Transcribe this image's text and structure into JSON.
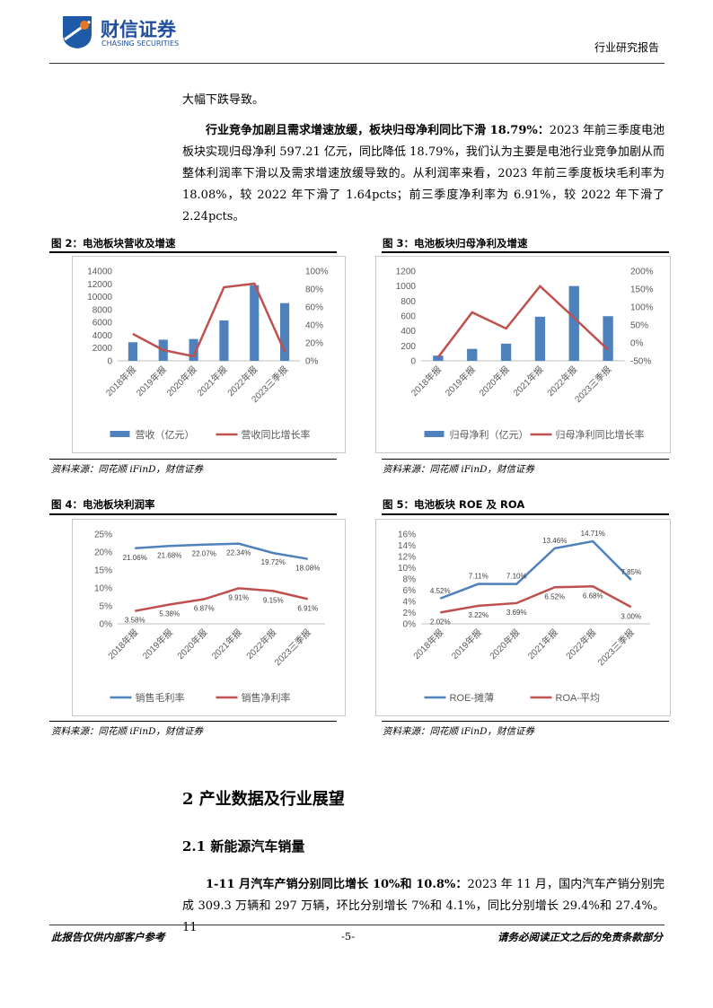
{
  "header": {
    "company": "财信证券",
    "company_en": "CHASING SECURITIES",
    "report_type": "行业研究报告"
  },
  "body": {
    "paragraphs": [
      {
        "text": "大幅下跌导致。"
      },
      {
        "lead": "行业竞争加剧且需求增速放缓，板块归母净利同比下滑 18.79%：",
        "text": "2023 年前三季度电池板块实现归母净利 597.21 亿元，同比降低 18.79%，我们认为主要是电池行业竞争加剧从而整体利润率下滑以及需求增速放缓导致的。从利润率来看，2023 年前三季度板块毛利率为 18.08%，较 2022 年下滑了 1.64pcts；前三季度净利率为 6.91%，较 2022 年下滑了 2.24pcts。"
      }
    ]
  },
  "chart_data": [
    {
      "type": "bar",
      "title": "图 2：电池板块营收及增速",
      "source": "资料来源：同花顺 iFinD，财信证券",
      "categories": [
        "2018年报",
        "2019年报",
        "2020年报",
        "2021年报",
        "2022年报",
        "2023三季报"
      ],
      "series": [
        {
          "name": "营收（亿元）",
          "color": "#4f81bd",
          "values": [
            2900,
            3300,
            3400,
            6300,
            11800,
            9000
          ]
        },
        {
          "name": "营收同比增长率",
          "color": "#c0504d",
          "axis": "y2",
          "values": [
            30,
            12,
            5,
            82,
            86,
            10
          ]
        }
      ],
      "ylim": [
        0,
        14000
      ],
      "yticks": [
        0,
        2000,
        4000,
        6000,
        8000,
        10000,
        12000,
        14000
      ],
      "y2lim": [
        0,
        100
      ],
      "y2ticks": [
        {
          "value": 0,
          "label": "0%"
        },
        {
          "value": 20,
          "label": "20%"
        },
        {
          "value": 40,
          "label": "40%"
        },
        {
          "value": 60,
          "label": "60%"
        },
        {
          "value": 80,
          "label": "80%"
        },
        {
          "value": 100,
          "label": "100%"
        }
      ]
    },
    {
      "type": "bar",
      "title": "图 3：电池板块归母净利及增速",
      "source": "资料来源：同花顺 iFinD，财信证券",
      "categories": [
        "2018年报",
        "2019年报",
        "2020年报",
        "2021年报",
        "2022年报",
        "2023三季报"
      ],
      "series": [
        {
          "name": "归母净利（亿元）",
          "color": "#4f81bd",
          "values": [
            70,
            160,
            230,
            590,
            1000,
            597
          ]
        },
        {
          "name": "归母净利同比增长率",
          "color": "#c0504d",
          "axis": "y2",
          "values": [
            -40,
            85,
            40,
            158,
            70,
            -19
          ]
        }
      ],
      "ylim": [
        0,
        1200
      ],
      "yticks": [
        0,
        200,
        400,
        600,
        800,
        1000,
        1200
      ],
      "y2lim": [
        -50,
        200
      ],
      "y2ticks": [
        {
          "value": -50,
          "label": "-50%"
        },
        {
          "value": 0,
          "label": "0%"
        },
        {
          "value": 50,
          "label": "50%"
        },
        {
          "value": 100,
          "label": "100%"
        },
        {
          "value": 150,
          "label": "150%"
        },
        {
          "value": 200,
          "label": "200%"
        }
      ]
    },
    {
      "type": "line",
      "title": "图 4：电池板块利润率",
      "source": "资料来源：同花顺 iFinD，财信证券",
      "categories": [
        "2018年报",
        "2019年报",
        "2020年报",
        "2021年报",
        "2022年报",
        "2023三季报"
      ],
      "series": [
        {
          "name": "销售毛利率",
          "color": "#4f81bd",
          "label_position": "below",
          "values": [
            21.06,
            21.68,
            22.07,
            22.34,
            19.72,
            18.08
          ],
          "value_labels": [
            "21.06%",
            "21.68%",
            "22.07%",
            "22.34%",
            "19.72%",
            "18.08%"
          ]
        },
        {
          "name": "销售净利率",
          "color": "#c0504d",
          "label_position": "below",
          "values": [
            3.58,
            5.38,
            6.87,
            9.91,
            9.15,
            6.91
          ],
          "value_labels": [
            "3.58%",
            "5.38%",
            "6.87%",
            "9.91%",
            "9.15%",
            "6.91%"
          ]
        }
      ],
      "ylim": [
        0,
        25
      ],
      "yticks": [
        {
          "value": 0,
          "label": "0%"
        },
        {
          "value": 5,
          "label": "5%"
        },
        {
          "value": 10,
          "label": "10%"
        },
        {
          "value": 15,
          "label": "15%"
        },
        {
          "value": 20,
          "label": "20%"
        },
        {
          "value": 25,
          "label": "25%"
        }
      ]
    },
    {
      "type": "line",
      "title": "图 5：电池板块 ROE 及 ROA",
      "source": "资料来源：同花顺 iFinD，财信证券",
      "categories": [
        "2018年报",
        "2019年报",
        "2020年报",
        "2021年报",
        "2022年报",
        "2023三季报"
      ],
      "series": [
        {
          "name": "ROE-摊薄",
          "color": "#4f81bd",
          "label_position": "above",
          "values": [
            4.52,
            7.11,
            7.1,
            13.46,
            14.71,
            7.85
          ],
          "value_labels": [
            "4.52%",
            "7.11%",
            "7.10%",
            "13.46%",
            "14.71%",
            "7.85%"
          ]
        },
        {
          "name": "ROA-平均",
          "color": "#c0504d",
          "label_position": "below",
          "values": [
            2.02,
            3.22,
            3.69,
            6.52,
            6.68,
            3.0
          ],
          "value_labels": [
            "2.02%",
            "3.22%",
            "3.69%",
            "6.52%",
            "6.68%",
            "3.00%"
          ]
        }
      ],
      "ylim": [
        0,
        16
      ],
      "yticks": [
        {
          "value": 0,
          "label": "0%"
        },
        {
          "value": 2,
          "label": "2%"
        },
        {
          "value": 4,
          "label": "4%"
        },
        {
          "value": 6,
          "label": "6%"
        },
        {
          "value": 8,
          "label": "8%"
        },
        {
          "value": 10,
          "label": "10%"
        },
        {
          "value": 12,
          "label": "12%"
        },
        {
          "value": 14,
          "label": "14%"
        },
        {
          "value": 16,
          "label": "16%"
        }
      ]
    }
  ],
  "section": {
    "heading": "2 产业数据及行业展望",
    "subheading": "2.1 新能源汽车销量",
    "paragraph": {
      "lead": "1-11 月汽车产销分别同比增长 10%和 10.8%：",
      "text": "2023 年 11 月，国内汽车产销分别完成 309.3 万辆和 297 万辆，环比分别增长 7%和 4.1%，同比分别增长 29.4%和 27.4%。11"
    }
  },
  "footer": {
    "left": "此报告仅供内部客户参考",
    "page": "-5-",
    "right": "请务必阅读正文之后的免责条款部分"
  }
}
